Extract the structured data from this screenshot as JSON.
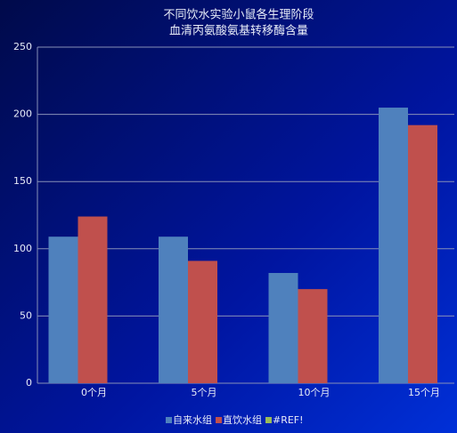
{
  "chart_data": {
    "type": "bar",
    "title": [
      "不同饮水实验小鼠各生理阶段",
      "血清丙氨酸氨基转移酶含量"
    ],
    "categories": [
      "0个月",
      "5个月",
      "10个月",
      "15个月"
    ],
    "series": [
      {
        "name": "自来水组",
        "color": "#4f81bd",
        "values": [
          109,
          109,
          82,
          205
        ]
      },
      {
        "name": "直饮水组",
        "color": "#c0504d",
        "values": [
          124,
          91,
          70,
          192
        ]
      },
      {
        "name": "#REF!",
        "color": "#9bbb59",
        "values": [
          null,
          null,
          null,
          null
        ]
      }
    ],
    "ylim": [
      0,
      250
    ],
    "yticks": [
      0,
      50,
      100,
      150,
      200,
      250
    ],
    "grid": true,
    "legend": "bottom"
  }
}
